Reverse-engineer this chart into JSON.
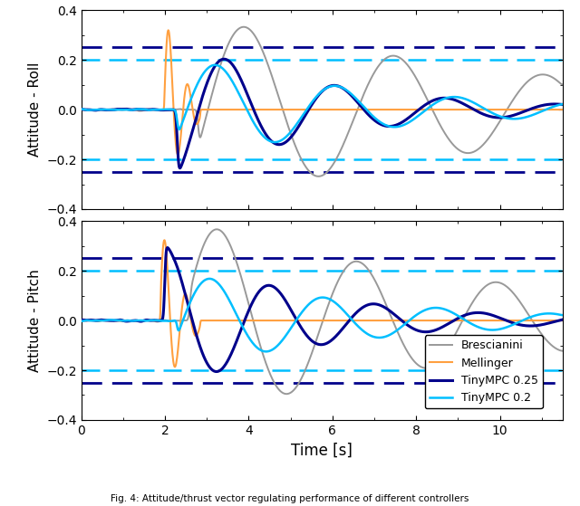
{
  "xlabel": "Time [s]",
  "ylabel_top": "Attitude - Roll",
  "ylabel_bot": "Attitude - Pitch",
  "xlim": [
    0,
    11.5
  ],
  "ylim": [
    -0.4,
    0.4
  ],
  "yticks": [
    -0.4,
    -0.2,
    0,
    0.2,
    0.4
  ],
  "xticks": [
    0,
    2,
    4,
    6,
    8,
    10
  ],
  "constraint_tinympc25": 0.25,
  "constraint_tinympc20": 0.2,
  "colors": {
    "brescianini": "#999999",
    "mellinger": "#FFA040",
    "tinympc25": "#00008B",
    "tinympc20": "#00BFFF"
  },
  "linewidths": {
    "brescianini": 1.4,
    "mellinger": 1.5,
    "tinympc25": 2.2,
    "tinympc20": 1.8
  },
  "legend_labels": [
    "Brescianini",
    "Mellinger",
    "TinyMPC 0.25",
    "TinyMPC 0.2"
  ],
  "caption": "Fig. 4: Attitude/thrust vector regulating performance of different controllers"
}
